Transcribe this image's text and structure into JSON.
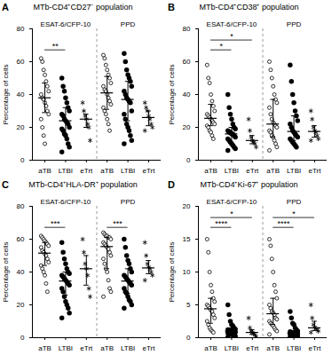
{
  "chart_data": [
    {
      "type": "scatter",
      "panel": "A",
      "title": "MTb-CD4⁺CD27⁻ population",
      "y_label": "Percentage of cells",
      "ylim": [
        0,
        80
      ],
      "yticks": [
        0,
        20,
        40,
        60,
        80
      ],
      "color": "#000000",
      "categories": [
        "aTB",
        "LTBI",
        "eTrt"
      ],
      "groups": [
        {
          "name": "ESAT-6/CFP-10",
          "series": [
            {
              "name": "aTB",
              "marker": "circle-open",
              "values": [
                62,
                60,
                55,
                52,
                48,
                45,
                42,
                40,
                38,
                37,
                35,
                33,
                30,
                28,
                25,
                20,
                15,
                10
              ],
              "median": 38,
              "iqr": [
                29,
                47
              ]
            },
            {
              "name": "LTBI",
              "marker": "circle",
              "values": [
                50,
                45,
                42,
                38,
                35,
                32,
                30,
                28,
                27,
                25,
                24,
                23,
                22,
                20,
                19,
                18,
                16,
                15,
                13,
                10,
                8,
                5
              ],
              "median": 24,
              "iqr": [
                16,
                32
              ]
            },
            {
              "name": "eTrt",
              "marker": "asterisk",
              "values": [
                35,
                30,
                27,
                25,
                22,
                20,
                12
              ],
              "median": 25,
              "iqr": [
                20,
                28
              ]
            }
          ],
          "significance": [
            {
              "from": "aTB",
              "to": "LTBI",
              "label": "**"
            }
          ]
        },
        {
          "name": "PPD",
          "series": [
            {
              "name": "aTB",
              "marker": "circle-open",
              "values": [
                64,
                62,
                58,
                55,
                52,
                50,
                47,
                45,
                43,
                42,
                40,
                38,
                36,
                34,
                32,
                30,
                28,
                25,
                22,
                18
              ],
              "median": 41,
              "iqr": [
                31,
                51
              ]
            },
            {
              "name": "LTBI",
              "marker": "circle",
              "values": [
                65,
                60,
                55,
                52,
                50,
                48,
                45,
                42,
                40,
                38,
                37,
                36,
                35,
                30,
                28,
                25,
                22,
                20,
                18,
                15,
                12,
                10
              ],
              "median": 37,
              "iqr": [
                24,
                48
              ]
            },
            {
              "name": "eTrt",
              "marker": "asterisk",
              "values": [
                35,
                32,
                30,
                27,
                25,
                22,
                20,
                18
              ],
              "median": 26,
              "iqr": [
                21,
                30
              ]
            }
          ],
          "significance": []
        }
      ]
    },
    {
      "type": "scatter",
      "panel": "B",
      "title": "MTb-CD4⁺CD38⁺ population",
      "y_label": "Percentage of cells",
      "ylim": [
        0,
        80
      ],
      "yticks": [
        0,
        20,
        40,
        60,
        80
      ],
      "color": "#000000",
      "categories": [
        "aTB",
        "LTBI",
        "eTrt"
      ],
      "groups": [
        {
          "name": "ESAT-6/CFP-10",
          "series": [
            {
              "name": "aTB",
              "marker": "circle-open",
              "values": [
                58,
                50,
                47,
                40,
                36,
                33,
                30,
                28,
                27,
                26,
                25,
                24,
                23,
                22,
                21,
                20,
                18,
                17,
                15,
                13
              ],
              "median": 25.5,
              "iqr": [
                21,
                34
              ]
            },
            {
              "name": "LTBI",
              "marker": "circle",
              "values": [
                40,
                32,
                28,
                25,
                22,
                20,
                19,
                18,
                17,
                17,
                16,
                16,
                15,
                14,
                13,
                12,
                11,
                10,
                9,
                8,
                7,
                6
              ],
              "median": 16,
              "iqr": [
                11,
                20
              ]
            },
            {
              "name": "eTrt",
              "marker": "asterisk",
              "values": [
                25,
                18,
                14,
                12,
                11,
                10,
                8
              ],
              "median": 12,
              "iqr": [
                10,
                15
              ]
            }
          ],
          "significance": [
            {
              "from": "aTB",
              "to": "LTBI",
              "label": "*"
            },
            {
              "from": "aTB",
              "to": "eTrt",
              "label": "*"
            }
          ]
        },
        {
          "name": "PPD",
          "series": [
            {
              "name": "aTB",
              "marker": "circle-open",
              "values": [
                60,
                55,
                50,
                45,
                40,
                37,
                35,
                32,
                28,
                25,
                23,
                22,
                21,
                20,
                18,
                17,
                15,
                14,
                12,
                10,
                8,
                6
              ],
              "median": 22,
              "iqr": [
                14,
                37
              ]
            },
            {
              "name": "LTBI",
              "marker": "circle",
              "values": [
                58,
                48,
                40,
                35,
                30,
                27,
                24,
                22,
                20,
                18,
                17,
                16,
                15,
                14,
                13,
                12,
                11,
                10,
                9,
                8
              ],
              "median": 17.5,
              "iqr": [
                12,
                27
              ]
            },
            {
              "name": "eTrt",
              "marker": "asterisk",
              "values": [
                30,
                25,
                20,
                18,
                17,
                15,
                13,
                12
              ],
              "median": 17.5,
              "iqr": [
                14,
                21
              ]
            }
          ],
          "significance": []
        }
      ]
    },
    {
      "type": "scatter",
      "panel": "C",
      "title": "MTb-CD4⁺HLA-DR⁺ population",
      "y_label": "Percentage of cells",
      "ylim": [
        0,
        80
      ],
      "yticks": [
        0,
        20,
        40,
        60,
        80
      ],
      "color": "#000000",
      "categories": [
        "aTB",
        "LTBI",
        "eTrt"
      ],
      "groups": [
        {
          "name": "ESAT-6/CFP-10",
          "series": [
            {
              "name": "aTB",
              "marker": "circle-open",
              "values": [
                62,
                61,
                60,
                59,
                58,
                57,
                56,
                55,
                53,
                52,
                51,
                50,
                48,
                46,
                44,
                42,
                40,
                38,
                33,
                28
              ],
              "median": 51.5,
              "iqr": [
                44,
                58
              ]
            },
            {
              "name": "LTBI",
              "marker": "circle",
              "values": [
                58,
                52,
                48,
                45,
                42,
                40,
                39,
                38,
                37,
                36,
                35,
                34,
                33,
                32,
                30,
                28,
                25,
                22,
                20,
                18,
                15,
                12
              ],
              "median": 34.5,
              "iqr": [
                26,
                40
              ]
            },
            {
              "name": "eTrt",
              "marker": "asterisk",
              "values": [
                60,
                52,
                45,
                42,
                38,
                30,
                25
              ],
              "median": 42,
              "iqr": [
                32,
                50
              ]
            }
          ],
          "significance": [
            {
              "from": "aTB",
              "to": "LTBI",
              "label": "***"
            }
          ]
        },
        {
          "name": "PPD",
          "series": [
            {
              "name": "aTB",
              "marker": "circle-open",
              "values": [
                64,
                63,
                62,
                62,
                61,
                61,
                60,
                58,
                57,
                56,
                55,
                54,
                52,
                50,
                48,
                45,
                42,
                40,
                35,
                30,
                28,
                25
              ],
              "median": 55.5,
              "iqr": [
                42,
                61
              ]
            },
            {
              "name": "LTBI",
              "marker": "circle",
              "values": [
                60,
                55,
                50,
                47,
                45,
                42,
                40,
                38,
                37,
                36,
                35,
                34,
                33,
                32,
                30,
                28,
                27,
                25,
                23,
                22,
                20,
                18
              ],
              "median": 34.5,
              "iqr": [
                27,
                42
              ]
            },
            {
              "name": "eTrt",
              "marker": "asterisk",
              "values": [
                58,
                50,
                45,
                43,
                42,
                40,
                38,
                35
              ],
              "median": 42.5,
              "iqr": [
                39,
                47
              ]
            }
          ],
          "significance": [
            {
              "from": "aTB",
              "to": "LTBI",
              "label": "***"
            }
          ]
        }
      ]
    },
    {
      "type": "scatter",
      "panel": "D",
      "title": "MTb-CD4⁺Ki-67⁺ population",
      "y_label": "Percentage of cells",
      "ylim": [
        0,
        20
      ],
      "yticks": [
        0,
        5,
        10,
        15,
        20
      ],
      "color": "#000000",
      "categories": [
        "aTB",
        "LTBI",
        "eTrt"
      ],
      "groups": [
        {
          "name": "ESAT-6/CFP-10",
          "series": [
            {
              "name": "aTB",
              "marker": "circle-open",
              "values": [
                15,
                13,
                10,
                8,
                7,
                6,
                5.5,
                5,
                4.8,
                4.5,
                4.2,
                4,
                3.5,
                3,
                2.5,
                2,
                1.5,
                1.2,
                1,
                0.8
              ],
              "median": 4.4,
              "iqr": [
                2.2,
                6
              ]
            },
            {
              "name": "LTBI",
              "marker": "circle",
              "values": [
                5,
                3.5,
                2.5,
                2,
                1.8,
                1.5,
                1.3,
                1.2,
                1.1,
                1,
                1,
                0.9,
                0.8,
                0.8,
                0.7,
                0.6,
                0.5,
                0.5,
                0.4,
                0.3,
                0.2,
                0.1
              ],
              "median": 1,
              "iqr": [
                0.5,
                1.5
              ]
            },
            {
              "name": "eTrt",
              "marker": "asterisk",
              "values": [
                3,
                1.5,
                1,
                0.8,
                0.6,
                0.4,
                0.2
              ],
              "median": 0.8,
              "iqr": [
                0.5,
                1.2
              ]
            }
          ],
          "significance": [
            {
              "from": "aTB",
              "to": "LTBI",
              "label": "****"
            },
            {
              "from": "aTB",
              "to": "eTrt",
              "label": "*"
            }
          ]
        },
        {
          "name": "PPD",
          "series": [
            {
              "name": "aTB",
              "marker": "circle-open",
              "values": [
                15,
                14,
                12,
                10,
                8,
                7,
                6,
                5,
                4.5,
                4,
                3.8,
                3.5,
                3,
                2.8,
                2.5,
                2.2,
                2,
                1.8,
                1.5,
                1.2,
                1,
                0.5
              ],
              "median": 3.65,
              "iqr": [
                2,
                6
              ]
            },
            {
              "name": "LTBI",
              "marker": "circle",
              "values": [
                4,
                3,
                2.2,
                2,
                1.5,
                1.2,
                1,
                0.9,
                0.8,
                0.8,
                0.7,
                0.7,
                0.6,
                0.6,
                0.5,
                0.5,
                0.4,
                0.4,
                0.3,
                0.3,
                0.2,
                0.1
              ],
              "median": 0.7,
              "iqr": [
                0.4,
                1
              ]
            },
            {
              "name": "eTrt",
              "marker": "asterisk",
              "values": [
                5,
                3,
                2,
                1.6,
                1.4,
                1.2,
                1,
                0.8
              ],
              "median": 1.5,
              "iqr": [
                1.1,
                2.5
              ]
            }
          ],
          "significance": [
            {
              "from": "aTB",
              "to": "LTBI",
              "label": "****"
            },
            {
              "from": "aTB",
              "to": "eTrt",
              "label": "*"
            }
          ]
        }
      ]
    }
  ]
}
